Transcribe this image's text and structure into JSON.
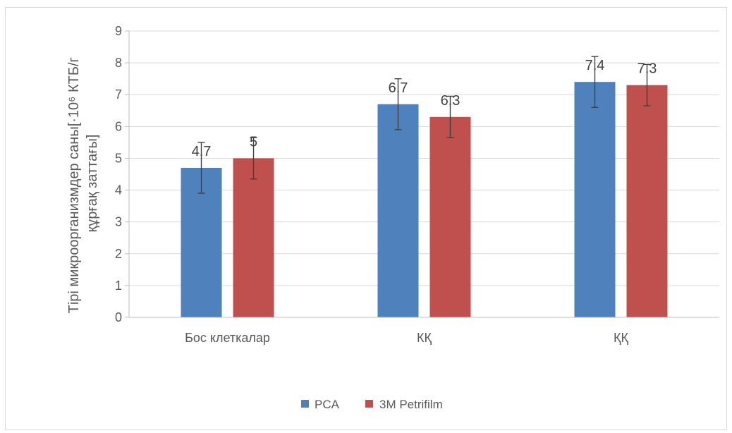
{
  "chart_data": {
    "type": "bar",
    "title": "",
    "xlabel": "",
    "ylabel_lines": [
      "Тірі микроорганизмдер саны[·10⁶ КТБ/г",
      "құрғақ заттағы]"
    ],
    "ylim": [
      0,
      9
    ],
    "yticks": [
      0,
      1,
      2,
      3,
      4,
      5,
      6,
      7,
      8,
      9
    ],
    "grid": true,
    "legend_position": "bottom",
    "categories": [
      "Бос клеткалар",
      "КҚ",
      "ҚҚ"
    ],
    "series": [
      {
        "name": "PCA",
        "color": "#4f81bd",
        "values": [
          4.7,
          6.7,
          7.4
        ],
        "labels": [
          "4.7",
          "6.7",
          "7.4"
        ],
        "error": [
          0.8,
          0.8,
          0.8
        ]
      },
      {
        "name": "3M Petrifilm",
        "color": "#c0504d",
        "values": [
          5,
          6.3,
          7.3
        ],
        "labels": [
          "5",
          "6.3",
          "7.3"
        ],
        "error": [
          0.65,
          0.65,
          0.65
        ]
      }
    ]
  }
}
